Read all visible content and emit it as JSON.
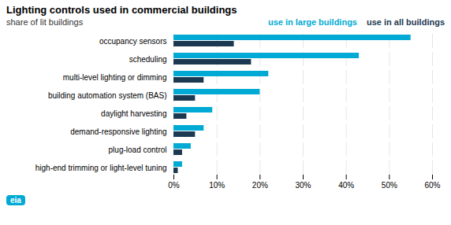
{
  "chart_data": {
    "type": "bar",
    "orientation": "horizontal",
    "title": "Lighting controls used in commercial buildings",
    "subtitle": "share of lit buildings",
    "categories": [
      "high-end trimming or light-level tuning",
      "plug-load control",
      "demand-responsive lighting",
      "daylight harvesting",
      "building automation system (BAS)",
      "multi-level lighting or dimming",
      "scheduling",
      "occupancy sensors"
    ],
    "series": [
      {
        "name": "use in large buildings",
        "color": "#00aad4",
        "values": [
          2,
          4,
          7,
          9,
          20,
          22,
          43,
          55
        ]
      },
      {
        "name": "use in all buildings",
        "color": "#1b3a52",
        "values": [
          1,
          2,
          5,
          3,
          5,
          7,
          18,
          14
        ]
      }
    ],
    "xlim": [
      0,
      60
    ],
    "xticks": [
      {
        "value": 0,
        "label": "0%"
      },
      {
        "value": 10,
        "label": "10%"
      },
      {
        "value": 20,
        "label": "20%"
      },
      {
        "value": 30,
        "label": "30%"
      },
      {
        "value": 40,
        "label": "40%"
      },
      {
        "value": 50,
        "label": "50%"
      },
      {
        "value": 60,
        "label": "60%"
      }
    ],
    "grid": true,
    "legend": "upper right",
    "annotations": [
      {
        "text": "eia",
        "color": "#00aad4"
      }
    ]
  }
}
